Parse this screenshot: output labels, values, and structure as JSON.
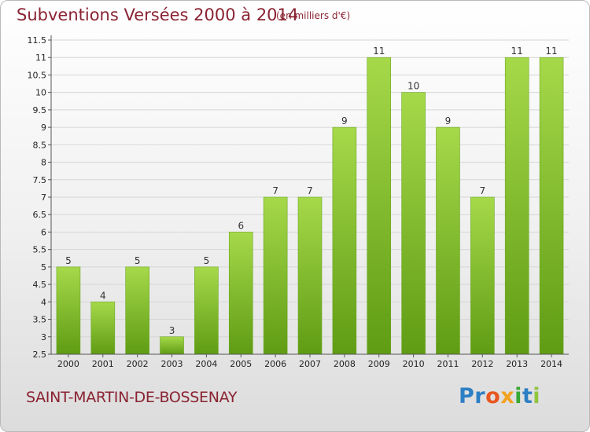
{
  "header": {
    "title": "Subventions Versées 2000 à 2014",
    "subtitle": "(en milliers d'€)"
  },
  "footer": {
    "commune": "SAINT-MARTIN-DE-BOSSENAY",
    "logo_text": "Proxiti"
  },
  "colors": {
    "title": "#8a2332",
    "bar_light": "#a6d94a",
    "bar_dark": "#5f9c14",
    "logo_letters": [
      "#2d7fc4",
      "#2d7fc4",
      "#e8571f",
      "#f2a21f",
      "#39a935",
      "#2d7fc4",
      "#8fc63e"
    ]
  },
  "chart_data": {
    "type": "bar",
    "categories": [
      "2000",
      "2001",
      "2002",
      "2003",
      "2004",
      "2005",
      "2006",
      "2007",
      "2008",
      "2009",
      "2010",
      "2011",
      "2012",
      "2013",
      "2014"
    ],
    "values": [
      5,
      4,
      5,
      3,
      5,
      6,
      7,
      7,
      9,
      11,
      10,
      9,
      7,
      11,
      11
    ],
    "value_labels": [
      "5",
      "4",
      "5",
      "3",
      "5",
      "6",
      "7",
      "7",
      "9",
      "11",
      "10",
      "9",
      "7",
      "11",
      "11"
    ],
    "yticks": [
      "2.5",
      "3",
      "3.5",
      "4",
      "4.5",
      "5",
      "5.5",
      "6",
      "6.5",
      "7",
      "7.5",
      "8",
      "8.5",
      "9",
      "9.5",
      "10",
      "10.5",
      "11",
      "11.5"
    ],
    "ylim": [
      2.5,
      11.5
    ],
    "grid": true,
    "title": "Subventions Versées 2000 à 2014",
    "xlabel": "",
    "ylabel": ""
  }
}
